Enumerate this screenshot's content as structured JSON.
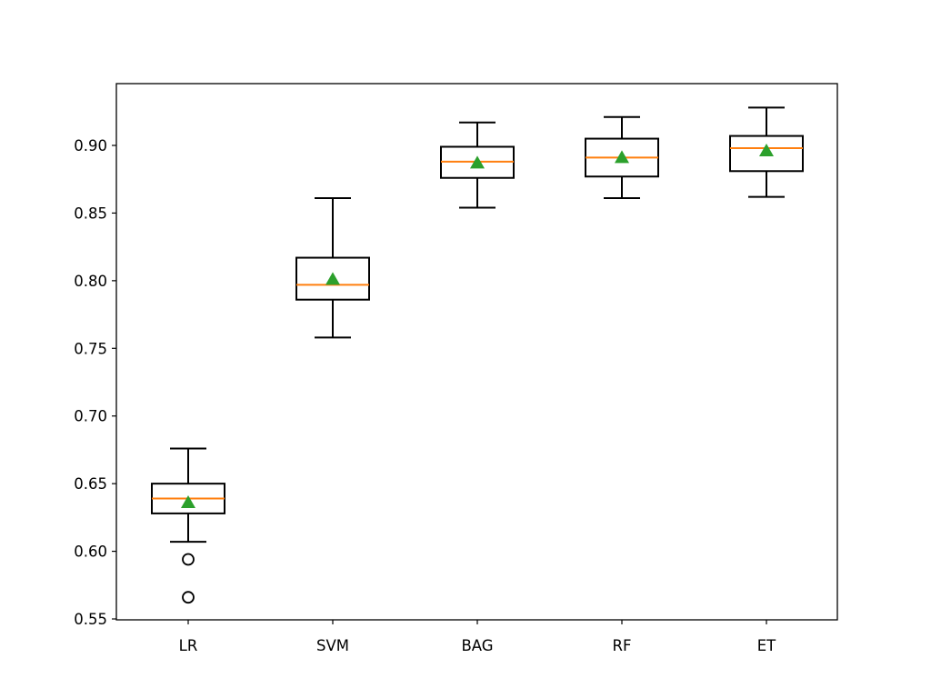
{
  "chart_data": {
    "type": "box",
    "title": "",
    "xlabel": "",
    "ylabel": "",
    "ylim": [
      0.548,
      0.945
    ],
    "yticks": [
      0.55,
      0.6,
      0.65,
      0.7,
      0.75,
      0.8,
      0.85,
      0.9
    ],
    "ytick_labels": [
      "0.55",
      "0.60",
      "0.65",
      "0.70",
      "0.75",
      "0.80",
      "0.85",
      "0.90"
    ],
    "categories": [
      "LR",
      "SVM",
      "BAG",
      "RF",
      "ET"
    ],
    "grid": false,
    "legend": null,
    "showmeans": true,
    "colors": {
      "box": "#000000",
      "median": "#ff7f0e",
      "mean_marker": "#2ca02c",
      "outlier": "#000000"
    },
    "series": [
      {
        "name": "LR",
        "whisker_low": 0.607,
        "q1": 0.628,
        "median": 0.639,
        "mean": 0.636,
        "q3": 0.65,
        "whisker_high": 0.676,
        "outliers": [
          0.594,
          0.566
        ]
      },
      {
        "name": "SVM",
        "whisker_low": 0.758,
        "q1": 0.786,
        "median": 0.797,
        "mean": 0.801,
        "q3": 0.817,
        "whisker_high": 0.861,
        "outliers": []
      },
      {
        "name": "BAG",
        "whisker_low": 0.854,
        "q1": 0.876,
        "median": 0.888,
        "mean": 0.887,
        "q3": 0.899,
        "whisker_high": 0.917,
        "outliers": []
      },
      {
        "name": "RF",
        "whisker_low": 0.861,
        "q1": 0.877,
        "median": 0.891,
        "mean": 0.891,
        "q3": 0.905,
        "whisker_high": 0.921,
        "outliers": []
      },
      {
        "name": "ET",
        "whisker_low": 0.862,
        "q1": 0.881,
        "median": 0.898,
        "mean": 0.896,
        "q3": 0.907,
        "whisker_high": 0.928,
        "outliers": []
      }
    ]
  }
}
